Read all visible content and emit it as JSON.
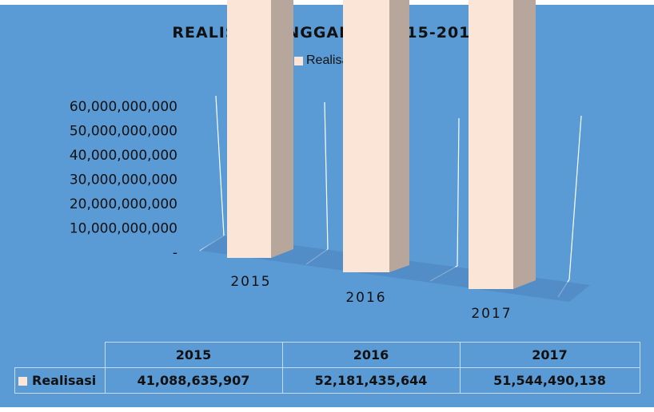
{
  "chart_data": {
    "type": "bar",
    "title": "REALISASI ANGGARAN 2015-2017",
    "categories": [
      "2015",
      "2016",
      "2017"
    ],
    "series": [
      {
        "name": "Realisasi",
        "values": [
          41088635907,
          52181435644,
          51544490138
        ]
      }
    ],
    "ylim": [
      0,
      60000000000
    ],
    "yticks": [
      "-",
      "10,000,000,000",
      "20,000,000,000",
      "30,000,000,000",
      "40,000,000,000",
      "50,000,000,000",
      "60,000,000,000"
    ],
    "legend_position": "top",
    "grid": false
  },
  "table": {
    "headers": [
      "2015",
      "2016",
      "2017"
    ],
    "row_label": "Realisasi",
    "values": [
      "41,088,635,907",
      "52,181,435,644",
      "51,544,490,138"
    ]
  },
  "colors": {
    "background": "#5b9bd5",
    "bar_front": "#fbe5d6",
    "bar_side": "#b7a69b",
    "bar_top": "#c9b8ad",
    "floor": "#4f87c0"
  }
}
